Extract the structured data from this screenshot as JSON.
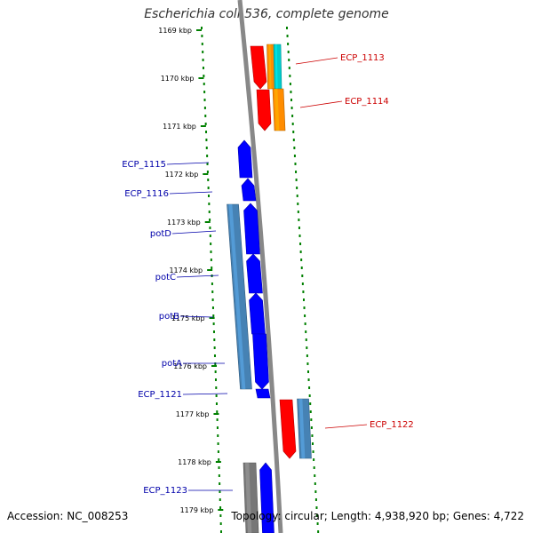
{
  "title": "Escherichia coli 536, complete genome",
  "accession": "Accession: NC_008253",
  "topology": "Topology: circular; Length: 4,938,920 bp; Genes: 4,722",
  "colors": {
    "blue": "#0000ff",
    "steel": "#4682b4",
    "red": "#ff0000",
    "orange": "#ff8c00",
    "cyan": "#00cccc",
    "gray": "#777777",
    "backbone": "#888888",
    "tick": "#008000"
  },
  "kbp_labels": [
    {
      "text": "1169 kbp",
      "kbp": 1169
    },
    {
      "text": "1170 kbp",
      "kbp": 1170
    },
    {
      "text": "1171 kbp",
      "kbp": 1171
    },
    {
      "text": "1172 kbp",
      "kbp": 1172
    },
    {
      "text": "1173 kbp",
      "kbp": 1173
    },
    {
      "text": "1174 kbp",
      "kbp": 1174
    },
    {
      "text": "1175 kbp",
      "kbp": 1175
    },
    {
      "text": "1176 kbp",
      "kbp": 1176
    },
    {
      "text": "1177 kbp",
      "kbp": 1177
    },
    {
      "text": "1178 kbp",
      "kbp": 1178
    },
    {
      "text": "1179 kbp",
      "kbp": 1179
    }
  ],
  "left_labels": [
    {
      "text": "ECP_1115",
      "gene": 0
    },
    {
      "text": "ECP_1116",
      "gene": 1
    },
    {
      "text": "potD",
      "gene": 2
    },
    {
      "text": "potC",
      "gene": 3
    },
    {
      "text": "potB",
      "gene": 4
    },
    {
      "text": "potA",
      "gene": 5
    },
    {
      "text": "ECP_1121",
      "gene": 6
    },
    {
      "text": "ECP_1123",
      "gene": 7
    }
  ],
  "right_labels": [
    {
      "text": "ECP_1113"
    },
    {
      "text": "ECP_1114"
    },
    {
      "text": "ECP_1122"
    }
  ]
}
